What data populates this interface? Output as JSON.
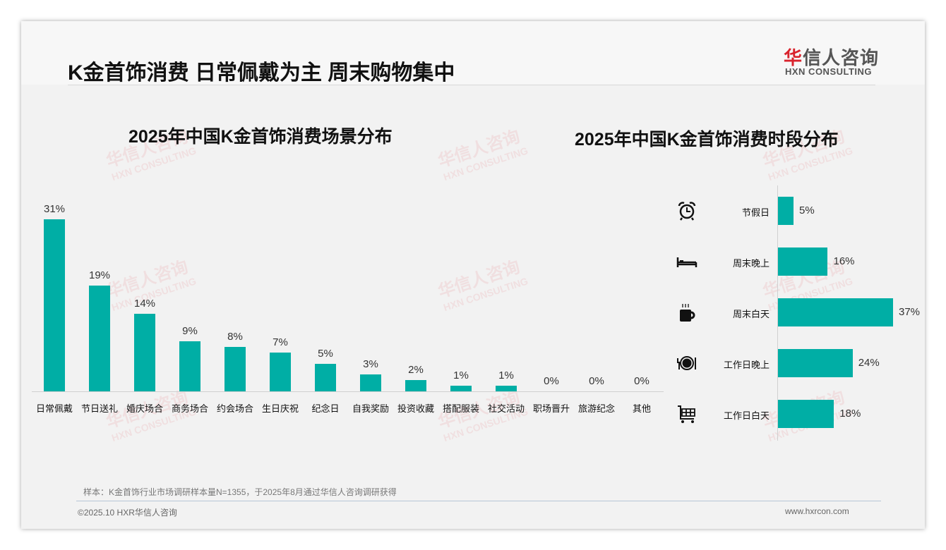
{
  "header": {
    "title": "K金首饰消费 日常佩戴为主 周末购物集中",
    "logo_cn_red": "华",
    "logo_cn": "信人咨询",
    "logo_en": "HXN CONSULTING"
  },
  "watermark": {
    "cn": "华信人咨询",
    "en": "HXN CONSULTING"
  },
  "chart_data": [
    {
      "type": "bar",
      "title": "2025年中国K金首饰消费场景分布",
      "categories": [
        "日常佩戴",
        "节日送礼",
        "婚庆场合",
        "商务场合",
        "约会场合",
        "生日庆祝",
        "纪念日",
        "自我奖励",
        "投资收藏",
        "搭配服装",
        "社交活动",
        "职场晋升",
        "旅游纪念",
        "其他"
      ],
      "values": [
        31,
        19,
        14,
        9,
        8,
        7,
        5,
        3,
        2,
        1,
        1,
        0,
        0,
        0
      ],
      "value_labels": [
        "31%",
        "19%",
        "14%",
        "9%",
        "8%",
        "7%",
        "5%",
        "3%",
        "2%",
        "1%",
        "1%",
        "0%",
        "0%",
        "0%"
      ],
      "ylim": [
        0,
        31
      ],
      "color": "#00aea5"
    },
    {
      "type": "bar",
      "orientation": "horizontal",
      "title": "2025年中国K金首饰消费时段分布",
      "categories": [
        "节假日",
        "周末晚上",
        "周末白天",
        "工作日晚上",
        "工作日白天"
      ],
      "icons": [
        "alarm-clock-icon",
        "bed-icon",
        "coffee-cup-icon",
        "dinner-plate-icon",
        "shopping-cart-icon"
      ],
      "values": [
        5,
        16,
        37,
        24,
        18
      ],
      "value_labels": [
        "5%",
        "16%",
        "37%",
        "24%",
        "18%"
      ],
      "xlim": [
        0,
        37
      ],
      "color": "#00aea5"
    }
  ],
  "footer": {
    "note": "样本：K金首饰行业市场调研样本量N=1355，于2025年8月通过华信人咨询调研获得",
    "copyright": "©2025.10 HXR华信人咨询",
    "website": "www.hxrcon.com"
  }
}
